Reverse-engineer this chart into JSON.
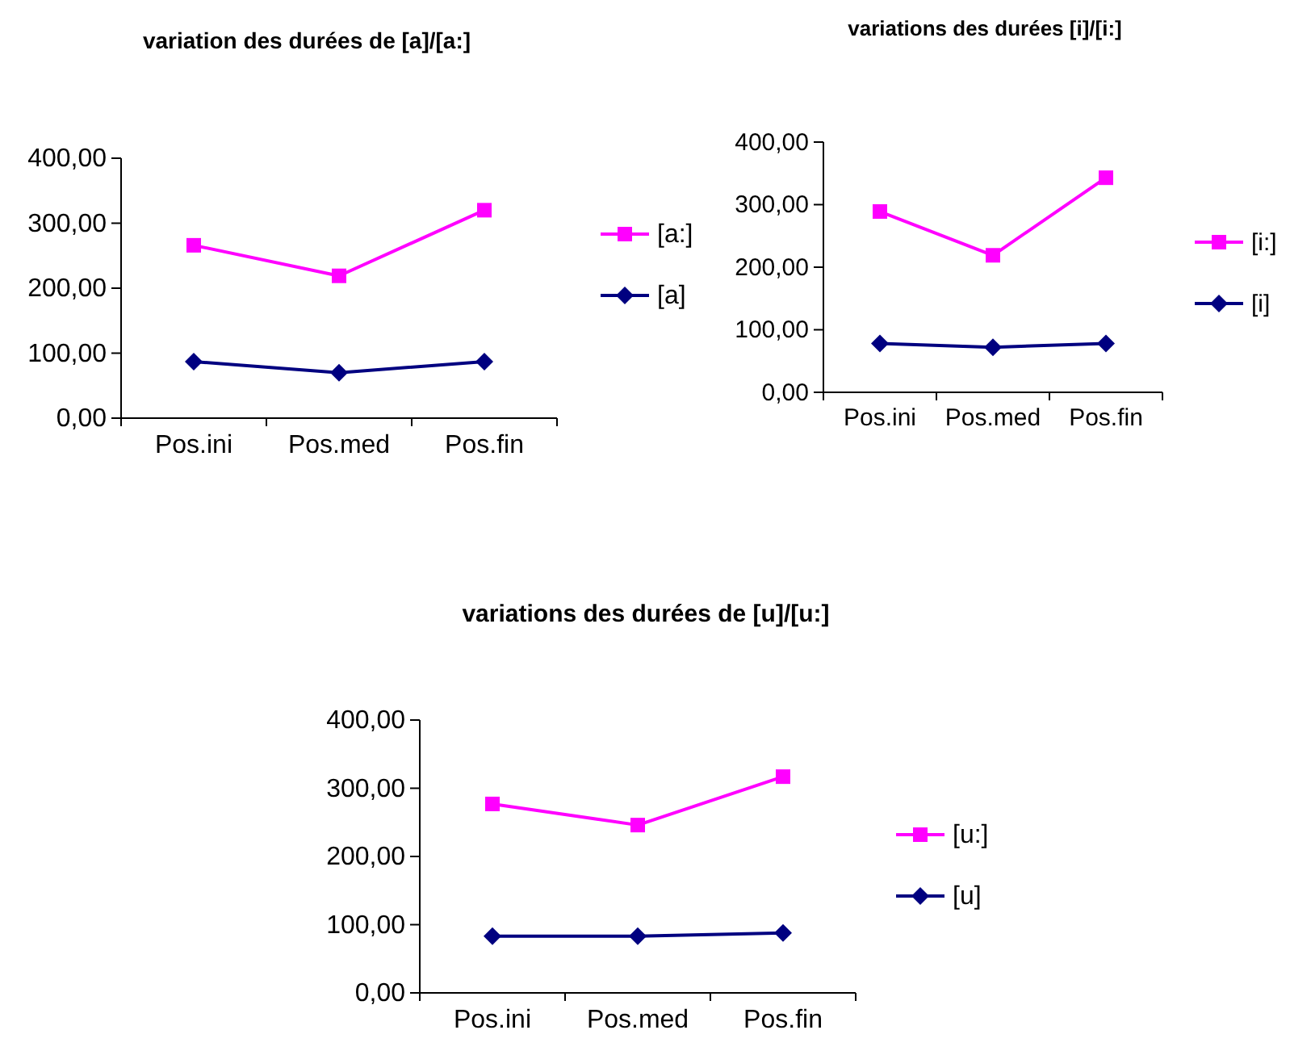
{
  "chart_data": [
    {
      "type": "line",
      "title": "variation des durées de [a]/[a:]",
      "categories": [
        "Pos.ini",
        "Pos.med",
        "Pos.fin"
      ],
      "series": [
        {
          "name": "[a:]",
          "color": "#ff00ff",
          "marker": "square",
          "values": [
            266,
            219,
            320
          ]
        },
        {
          "name": "[a]",
          "color": "#000080",
          "marker": "diamond",
          "values": [
            87,
            70,
            87
          ]
        }
      ],
      "ylim": [
        0,
        400
      ],
      "yticks": [
        {
          "value": 0,
          "label": "0,00"
        },
        {
          "value": 100,
          "label": "100,00"
        },
        {
          "value": 200,
          "label": "200,00"
        },
        {
          "value": 300,
          "label": "300,00"
        },
        {
          "value": 400,
          "label": "400,00"
        }
      ],
      "grid": false,
      "legend": "right"
    },
    {
      "type": "line",
      "title": "variations des durées [i]/[i:]",
      "categories": [
        "Pos.ini",
        "Pos.med",
        "Pos.fin"
      ],
      "series": [
        {
          "name": "[i:]",
          "color": "#ff00ff",
          "marker": "square",
          "values": [
            289,
            219,
            343
          ]
        },
        {
          "name": "[i]",
          "color": "#000080",
          "marker": "diamond",
          "values": [
            78,
            72,
            78
          ]
        }
      ],
      "ylim": [
        0,
        400
      ],
      "yticks": [
        {
          "value": 0,
          "label": "0,00"
        },
        {
          "value": 100,
          "label": "100,00"
        },
        {
          "value": 200,
          "label": "200,00"
        },
        {
          "value": 300,
          "label": "300,00"
        },
        {
          "value": 400,
          "label": "400,00"
        }
      ],
      "grid": false,
      "legend": "right"
    },
    {
      "type": "line",
      "title": "variations des durées de [u]/[u:]",
      "categories": [
        "Pos.ini",
        "Pos.med",
        "Pos.fin"
      ],
      "series": [
        {
          "name": "[u:]",
          "color": "#ff00ff",
          "marker": "square",
          "values": [
            277,
            246,
            317
          ]
        },
        {
          "name": "[u]",
          "color": "#000080",
          "marker": "diamond",
          "values": [
            83,
            83,
            88
          ]
        }
      ],
      "ylim": [
        0,
        400
      ],
      "yticks": [
        {
          "value": 0,
          "label": "0,00"
        },
        {
          "value": 100,
          "label": "100,00"
        },
        {
          "value": 200,
          "label": "200,00"
        },
        {
          "value": 300,
          "label": "300,00"
        },
        {
          "value": 400,
          "label": "400,00"
        }
      ],
      "grid": false,
      "legend": "right"
    }
  ]
}
